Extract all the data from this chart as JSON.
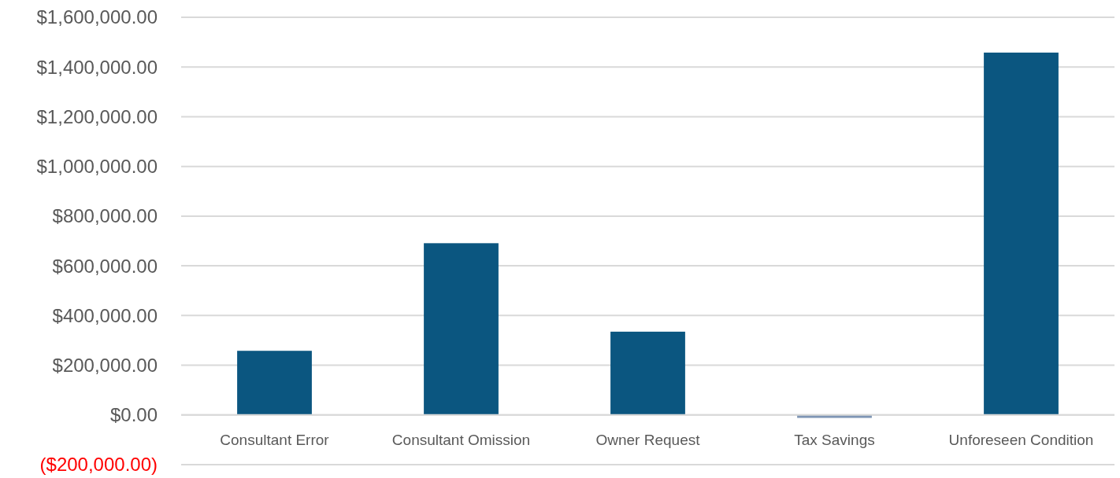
{
  "chart_data": {
    "type": "bar",
    "categories": [
      "Consultant Error",
      "Consultant Omission",
      "Owner Request",
      "Tax Savings",
      "Unforeseen Condition"
    ],
    "values": [
      258000,
      691000,
      335000,
      -12000,
      1458000
    ],
    "colors": [
      "#0b5680",
      "#0b5680",
      "#0b5680",
      "#7f96b5",
      "#0b5680"
    ],
    "ylim": [
      -200000,
      1600000
    ],
    "yticks": [
      {
        "value": -200000,
        "label": "($200,000.00)"
      },
      {
        "value": 0,
        "label": "$0.00"
      },
      {
        "value": 200000,
        "label": "$200,000.00"
      },
      {
        "value": 400000,
        "label": "$400,000.00"
      },
      {
        "value": 600000,
        "label": "$600,000.00"
      },
      {
        "value": 800000,
        "label": "$800,000.00"
      },
      {
        "value": 1000000,
        "label": "$1,000,000.00"
      },
      {
        "value": 1200000,
        "label": "$1,200,000.00"
      },
      {
        "value": 1400000,
        "label": "$1,400,000.00"
      },
      {
        "value": 1600000,
        "label": "$1,600,000.00"
      }
    ],
    "grid": "y"
  }
}
